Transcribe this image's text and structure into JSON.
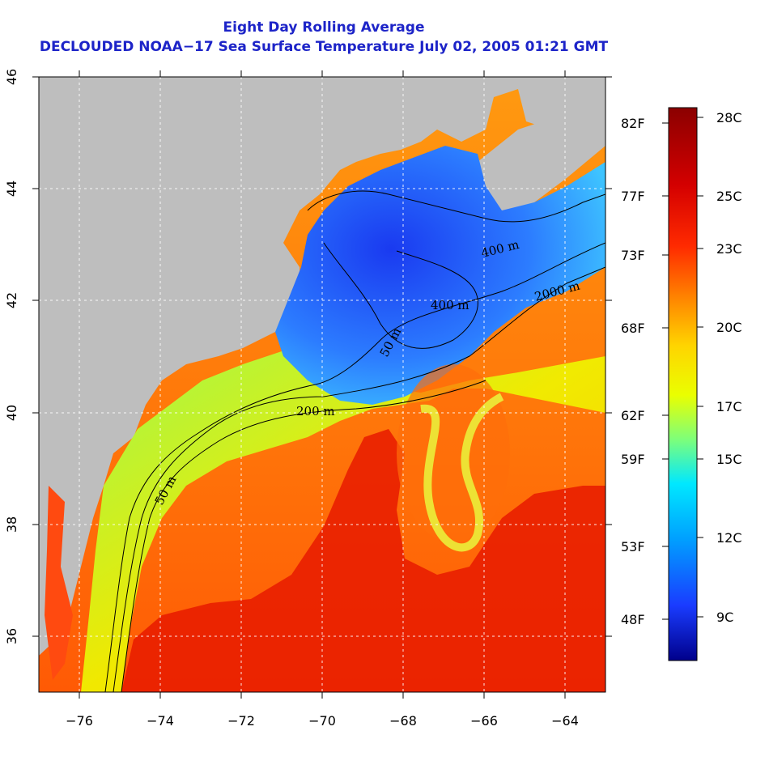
{
  "header": {
    "title": "Eight Day Rolling Average",
    "subtitle": "DECLOUDED NOAA−17 Sea Surface Temperature July 02, 2005 01:21 GMT"
  },
  "map": {
    "lon_range": [
      -77,
      -63
    ],
    "lat_range": [
      35,
      46
    ],
    "lon_ticks": [
      "−76",
      "−74",
      "−72",
      "−70",
      "−68",
      "−66",
      "−64"
    ],
    "lat_ticks": [
      "36",
      "38",
      "40",
      "42",
      "44",
      "46"
    ],
    "gridlines": "dotted",
    "land_color": "#bebebe",
    "contour_labels": [
      "50 m",
      "50 m",
      "200 m",
      "400 m",
      "400 m",
      "2000 m"
    ]
  },
  "colorbar": {
    "fahrenheit_labels": [
      "82F",
      "77F",
      "73F",
      "68F",
      "62F",
      "59F",
      "53F",
      "48F"
    ],
    "celsius_labels": [
      "28C",
      "25C",
      "23C",
      "20C",
      "17C",
      "15C",
      "12C",
      "9C"
    ],
    "colors": [
      "#8b0000",
      "#d40000",
      "#ff2a00",
      "#ff8a00",
      "#ffd400",
      "#eaff00",
      "#7dff7a",
      "#00e8ff",
      "#00a0ff",
      "#1a3cff",
      "#00008b"
    ]
  }
}
